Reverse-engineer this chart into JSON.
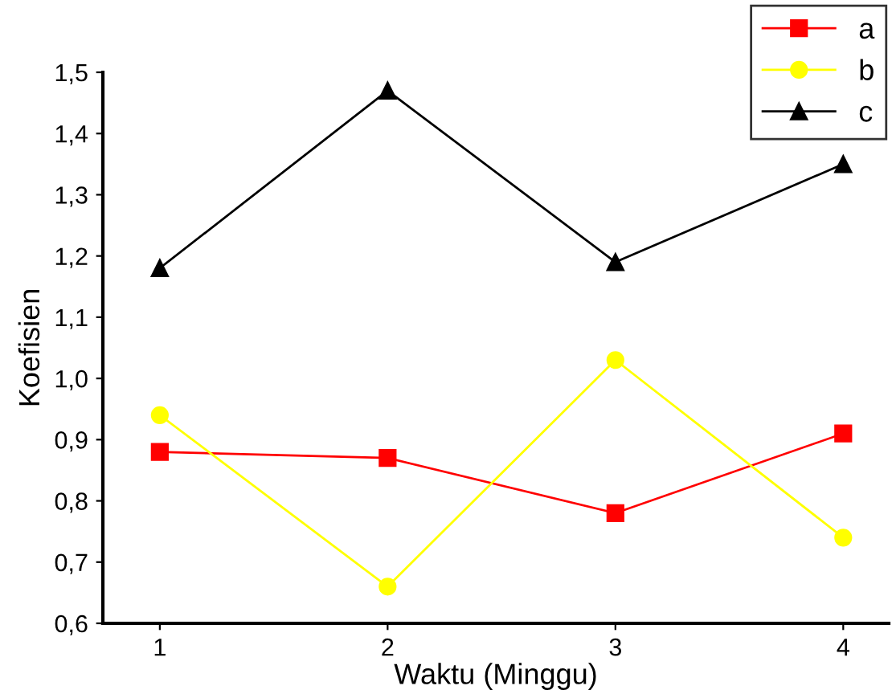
{
  "chart_data": {
    "type": "line",
    "xlabel": "Waktu (Minggu)",
    "ylabel": "Koefisien",
    "x": [
      1,
      2,
      3,
      4
    ],
    "xlim": [
      0.75,
      4.2
    ],
    "xticks": [
      1,
      2,
      3,
      4
    ],
    "ylim": [
      0.6,
      1.5
    ],
    "yticks": [
      {
        "value": 0.6,
        "label": "0,6"
      },
      {
        "value": 0.7,
        "label": "0,7"
      },
      {
        "value": 0.8,
        "label": "0,8"
      },
      {
        "value": 0.9,
        "label": "0,9"
      },
      {
        "value": 1.0,
        "label": "1,0"
      },
      {
        "value": 1.1,
        "label": "1,1"
      },
      {
        "value": 1.2,
        "label": "1,2"
      },
      {
        "value": 1.3,
        "label": "1,3"
      },
      {
        "value": 1.4,
        "label": "1,4"
      },
      {
        "value": 1.5,
        "label": "1,5"
      }
    ],
    "grid": false,
    "legend": "top right",
    "line_style": "solid",
    "series": [
      {
        "name": "a",
        "color": "#ff0000",
        "marker": "square",
        "values": [
          0.88,
          0.87,
          0.78,
          0.91
        ]
      },
      {
        "name": "b",
        "color": "#ffff00",
        "marker": "circle",
        "values": [
          0.94,
          0.66,
          1.03,
          0.74
        ]
      },
      {
        "name": "c",
        "color": "#000000",
        "marker": "triangle",
        "values": [
          1.18,
          1.47,
          1.19,
          1.35
        ]
      }
    ]
  }
}
